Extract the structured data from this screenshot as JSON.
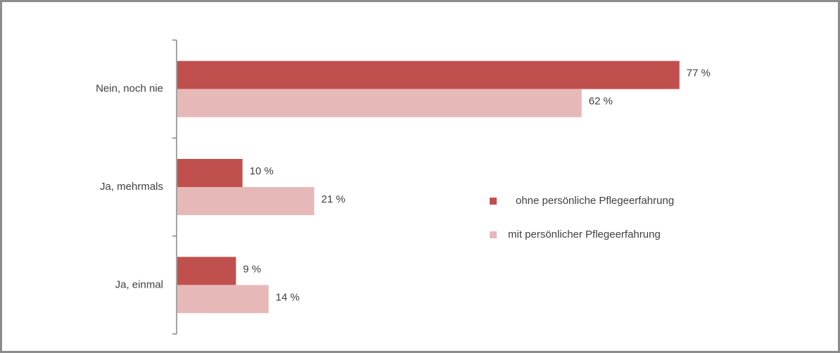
{
  "chart_data": {
    "type": "hbar",
    "categories": [
      "Nein, noch nie",
      "Ja, mehrmals",
      "Ja, einmal"
    ],
    "series": [
      {
        "name": "ohne persönliche Pflegeerfahrung",
        "color": "#c0504d",
        "values": [
          77,
          10,
          9
        ],
        "value_labels": [
          "77 %",
          "10 %",
          "9 %"
        ]
      },
      {
        "name": "mit persönlicher Pflegeerfahrung",
        "color": "#e6b9b8",
        "values": [
          62,
          21,
          14
        ],
        "value_labels": [
          "62 %",
          "21 %",
          "14 %"
        ]
      }
    ]
  }
}
